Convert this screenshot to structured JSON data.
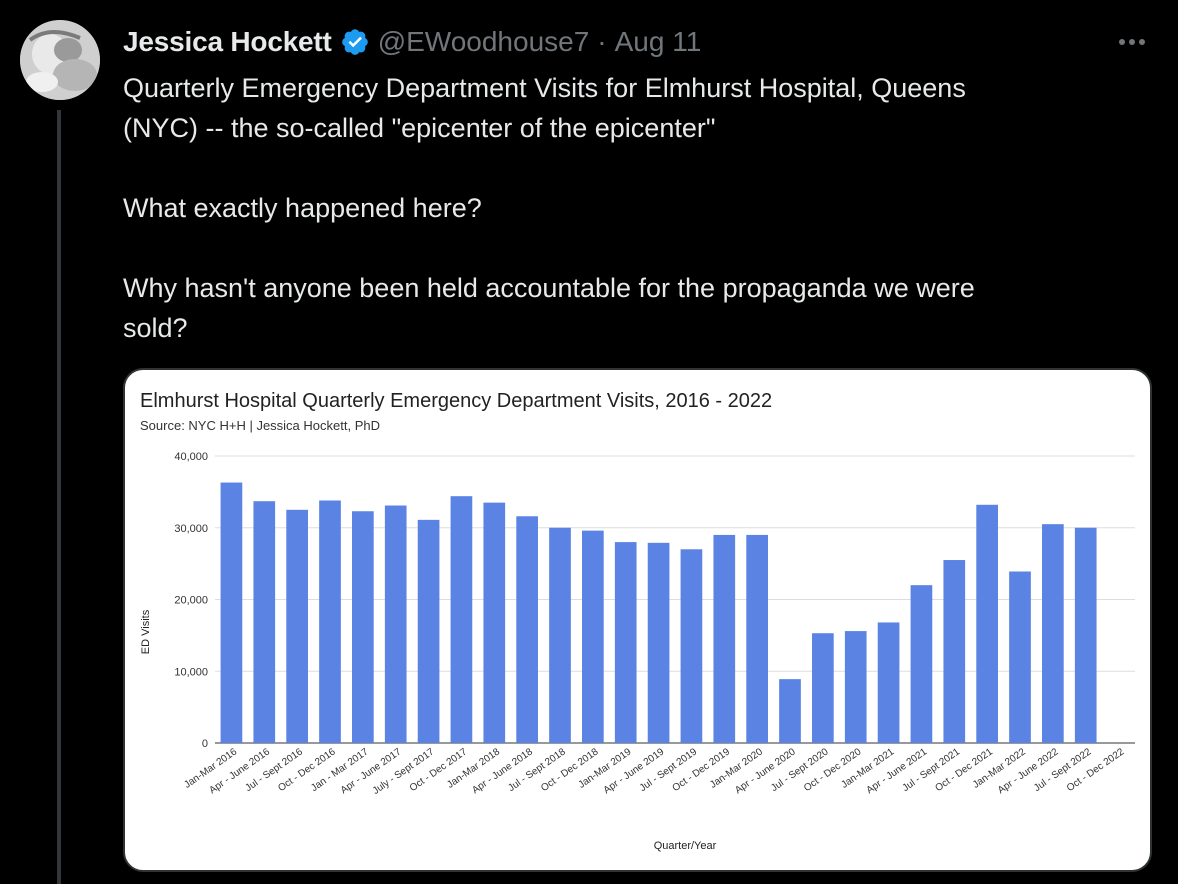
{
  "tweet": {
    "display_name": "Jessica Hockett",
    "handle": "@EWoodhouse7",
    "separator": "·",
    "date": "Aug 11",
    "lines": [
      "Quarterly Emergency Department Visits for Elmhurst Hospital, Queens",
      "(NYC)  -- the so-called \"epicenter of the epicenter\"",
      "",
      "What exactly happened here?",
      "",
      "Why hasn't anyone been held accountable for the propaganda we were",
      "sold?"
    ],
    "icons": {
      "verified": "verified-badge-icon",
      "more": "more-options-icon"
    }
  },
  "colors": {
    "background": "#000000",
    "text": "#e7e9ea",
    "muted": "#71767b",
    "verified": "#1d9bf0",
    "bar": "#5b83e3"
  },
  "chart_data": {
    "type": "bar",
    "title": "Elmhurst Hospital Quarterly Emergency Department Visits, 2016 - 2022",
    "subtitle": "Source: NYC H+H | Jessica Hockett, PhD",
    "xlabel": "Quarter/Year",
    "ylabel": "ED Visits",
    "ylim": [
      0,
      40000
    ],
    "yticks": [
      0,
      10000,
      20000,
      30000,
      40000
    ],
    "ytick_labels": [
      "0",
      "10,000",
      "20,000",
      "30,000",
      "40,000"
    ],
    "grid": true,
    "categories": [
      "Jan-Mar 2016",
      "Apr - June 2016",
      "Jul - Sept 2016",
      "Oct - Dec 2016",
      "Jan - Mar 2017",
      "Apr - June 2017",
      "July - Sept 2017",
      "Oct - Dec 2017",
      "Jan-Mar 2018",
      "Apr - June 2018",
      "Jul - Sept 2018",
      "Oct - Dec 2018",
      "Jan-Mar 2019",
      "Apr - June 2019",
      "Jul - Sept 2019",
      "Oct - Dec 2019",
      "Jan-Mar 2020",
      "Apr - June 2020",
      "Jul - Sept 2020",
      "Oct - Dec 2020",
      "Jan-Mar 2021",
      "Apr - June 2021",
      "Jul - Sept 2021",
      "Oct - Dec 2021",
      "Jan-Mar 2022",
      "Apr - June 2022",
      "Jul - Sept 2022",
      "Oct - Dec 2022"
    ],
    "values": [
      36300,
      33700,
      32500,
      33800,
      32300,
      33100,
      31100,
      34400,
      33500,
      31600,
      30000,
      29600,
      28000,
      27900,
      27000,
      29000,
      29000,
      8900,
      15300,
      15600,
      16800,
      22000,
      25500,
      33200,
      23900,
      30500,
      30000,
      null
    ]
  }
}
